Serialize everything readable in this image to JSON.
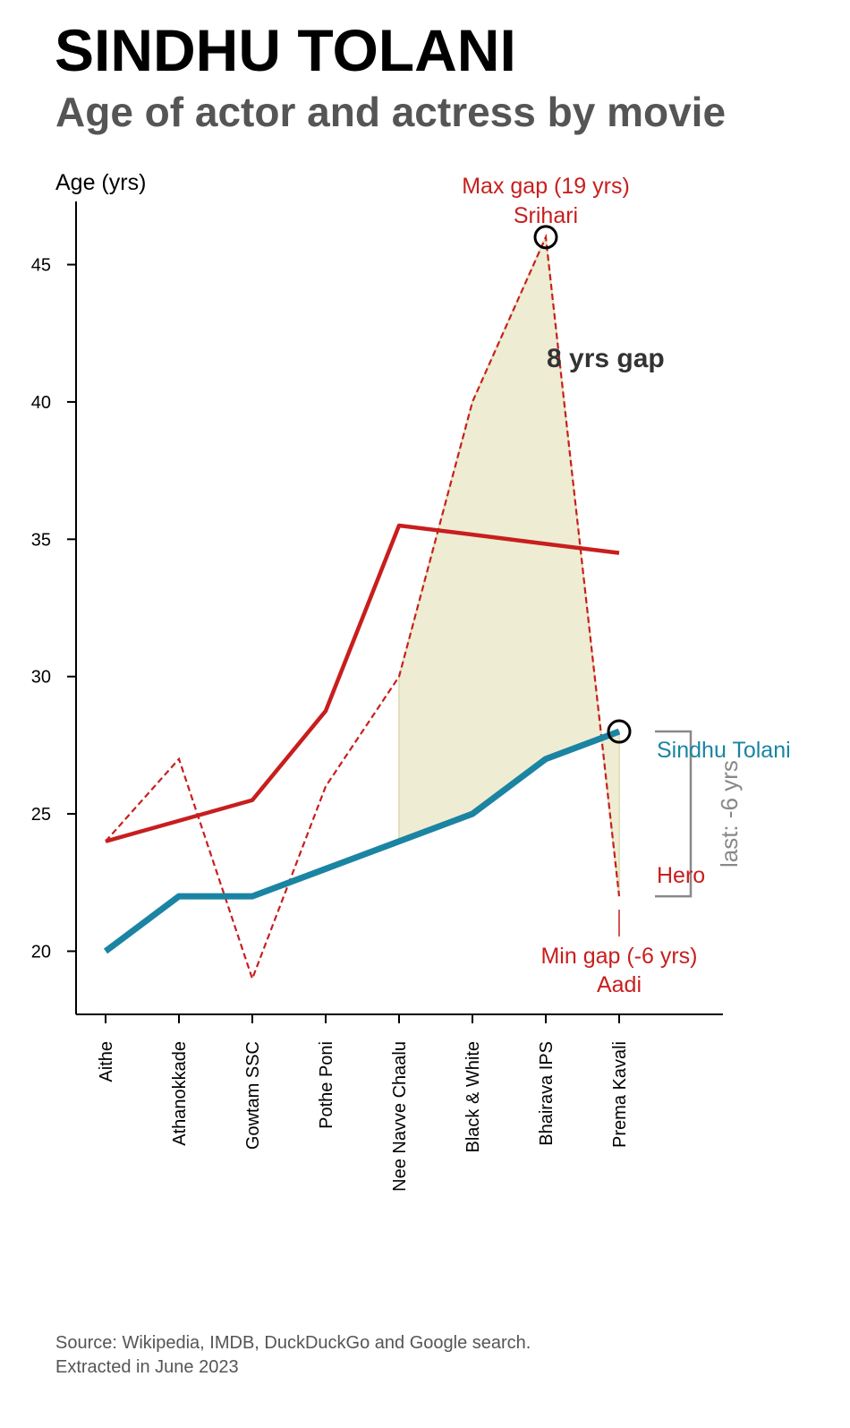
{
  "title": "SINDHU TOLANI",
  "subtitle": "Age of actor and actress by movie",
  "source_line1": "Source: Wikipedia, IMDB, DuckDuckGo and Google search.",
  "source_line2": "Extracted in June 2023",
  "colors": {
    "actress": "#1b84a3",
    "hero": "#c81e1e",
    "gap_fill": "#eeedd3",
    "annotation_gray": "#888888",
    "gap_text": "#333333"
  },
  "chart_data": {
    "type": "line",
    "ylabel": "Age (yrs)",
    "xlabel": "",
    "ylim": [
      17.7,
      47.3
    ],
    "yticks": [
      20,
      25,
      30,
      35,
      40,
      45
    ],
    "categories": [
      "Aithe",
      "Athanokkade",
      "Gowtam SSC",
      "Pothe Poni",
      "Nee Navve Chaalu",
      "Black & White",
      "Bhairava IPS",
      "Prema Kavali"
    ],
    "series": [
      {
        "name": "Sindhu Tolani",
        "style": "solid-thick",
        "values": [
          20,
          22,
          22,
          23,
          24,
          25,
          27,
          28
        ]
      },
      {
        "name": "Hero",
        "style": "dashed",
        "values": [
          24,
          27,
          19,
          26,
          30,
          40,
          46,
          22
        ]
      },
      {
        "name": "",
        "style": "solid-trend",
        "values": [
          24,
          24.75,
          25.5,
          28.75,
          35.5,
          35.17,
          34.83,
          34.5
        ]
      }
    ],
    "gap_fill_range": [
      "Nee Navve Chaalu",
      "Prema Kavali"
    ],
    "annotations": {
      "max_gap_line1": "Max gap (19 yrs)",
      "max_gap_line2": "Srihari",
      "max_gap_point": {
        "category": "Bhairava IPS",
        "value": 46
      },
      "min_gap_line1": "Min gap (-6 yrs)",
      "min_gap_line2": "Aadi",
      "last_point": {
        "category": "Prema Kavali",
        "value": 28
      },
      "avg_gap": "8 yrs gap",
      "last_gap": "last: -6 yrs",
      "label_actress": "Sindhu Tolani",
      "label_hero": "Hero"
    }
  }
}
